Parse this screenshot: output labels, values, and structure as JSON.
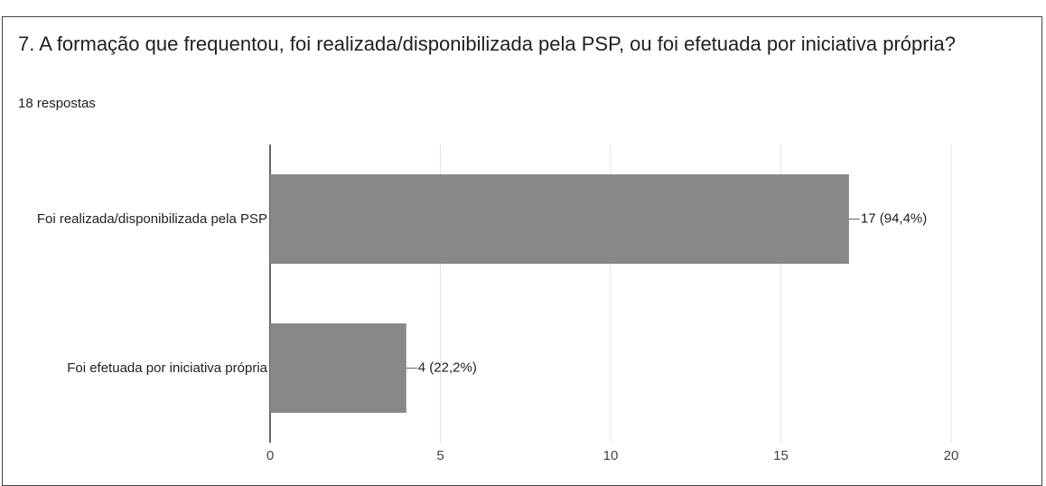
{
  "chart_data": {
    "type": "bar",
    "orientation": "horizontal",
    "title": "7.  A formação que frequentou, foi realizada/disponibilizada pela PSP, ou foi efetuada por iniciativa própria?",
    "subtitle": "18 respostas",
    "categories": [
      "Foi realizada/disponibilizada pela PSP",
      "Foi efetuada por iniciativa própria"
    ],
    "values": [
      17,
      4
    ],
    "value_labels": [
      "17 (94,4%)",
      "4 (22,2%)"
    ],
    "color": "#888888",
    "xlim": [
      0,
      20
    ],
    "xticks": [
      0,
      5,
      10,
      15,
      20
    ],
    "grid": true
  }
}
